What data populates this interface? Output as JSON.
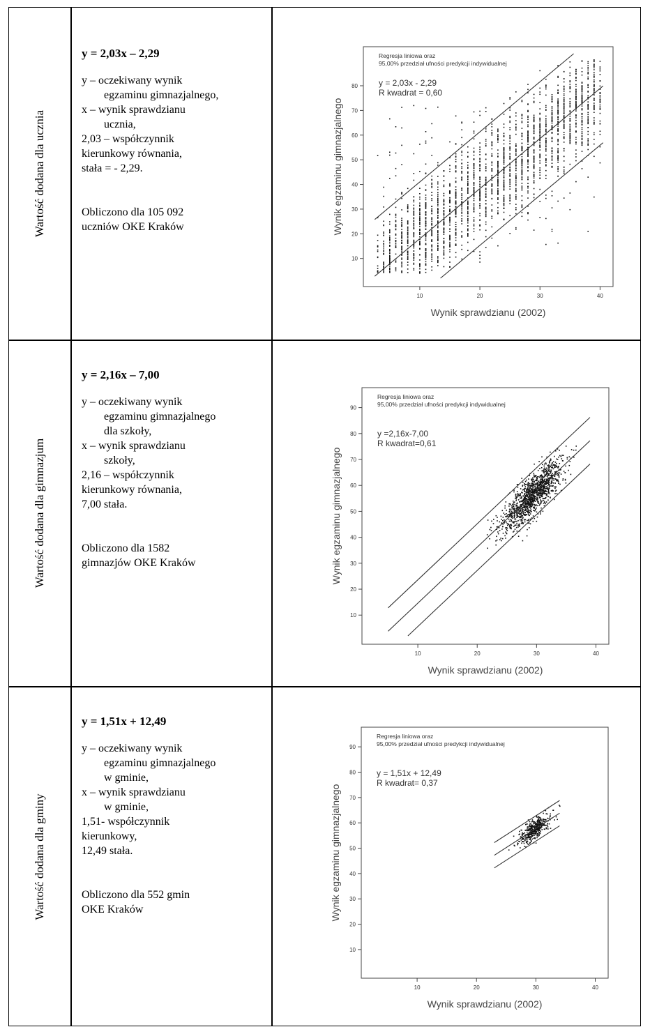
{
  "rows": [
    {
      "label": "Wartość dodana dla ucznia",
      "equation": "y = 2,03x – 2,29",
      "lines": [
        "y – oczekiwany wynik",
        "egzaminu gimnazjalnego,",
        "x – wynik sprawdzianu",
        "ucznia,",
        "2,03 – współczynnik",
        "kierunkowy równania,",
        "stała = - 2,29."
      ],
      "note": [
        "Obliczono dla 105 092",
        "uczniów OKE Kraków"
      ]
    },
    {
      "label": "Wartość dodana dla gimnazjum",
      "equation": "y = 2,16x – 7,00",
      "lines": [
        "y – oczekiwany wynik",
        "egzaminu gimnazjalnego",
        "dla szkoły,",
        "x – wynik sprawdzianu",
        "szkoły,",
        "2,16 – współczynnik",
        "kierunkowy równania,",
        "7,00 stała."
      ],
      "note": [
        "Obliczono dla 1582",
        "gimnazjów OKE Kraków"
      ]
    },
    {
      "label": "Wartość dodana dla gminy",
      "equation": "y = 1,51x + 12,49",
      "lines": [
        "y – oczekiwany wynik",
        "egzaminu gimnazjalnego",
        "w gminie,",
        "x – wynik sprawdzianu",
        "w gminie,",
        "1,51- współczynnik",
        "kierunkowy,",
        "12,49 stała."
      ],
      "note": [
        "Obliczono dla 552 gmin",
        "OKE Kraków"
      ]
    }
  ],
  "chart_data": [
    {
      "type": "scatter",
      "title": "Regresja liniowa oraz",
      "subtitle": "95,00% przedział ufności predykcji indywidualnej",
      "equation_label": "y = 2,03x - 2,29",
      "r2_label": "R kwadrat = 0,60",
      "xlabel": "Wynik sprawdzianu (2002)",
      "ylabel": "Wynik egzaminu gimnazjalnego",
      "xticks": [
        "10",
        "20",
        "30",
        "40"
      ],
      "yticks": [
        "10",
        "20",
        "30",
        "40",
        "50",
        "60",
        "70",
        "80"
      ],
      "xlim": [
        2,
        41
      ],
      "ylim": [
        2,
        93
      ],
      "slope": 2.03,
      "intercept": -2.29,
      "interval_halfwidth": 23,
      "point_count_label": "105 092"
    },
    {
      "type": "scatter",
      "title": "Regresja liniowa oraz",
      "subtitle": "95,00% przedział ufności predykcji indywidualnej",
      "equation_label": "y =2,16x-7,00",
      "r2_label": "R kwadrat=0,61",
      "xlabel": "Wynik sprawdzianu (2002)",
      "ylabel": "Wynik egzaminu gimnazjalnego",
      "xticks": [
        "10",
        "20",
        "30",
        "40"
      ],
      "yticks": [
        "10",
        "20",
        "30",
        "40",
        "50",
        "60",
        "70",
        "80",
        "90"
      ],
      "xlim": [
        2,
        41
      ],
      "ylim": [
        2,
        95
      ],
      "slope": 2.16,
      "intercept": -7.0,
      "interval_halfwidth": 9,
      "point_count_label": "1582"
    },
    {
      "type": "scatter",
      "title": "Regresja liniowa oraz",
      "subtitle": "95,00% przedział ufności predykcji indywidualnej",
      "equation_label": "y = 1,51x + 12,49",
      "r2_label": "R kwadrat= 0,37",
      "xlabel": "Wynik sprawdzianu (2002)",
      "ylabel": "Wynik egzaminu gimnazjalnego",
      "xticks": [
        "10",
        "20",
        "30",
        "40"
      ],
      "yticks": [
        "10",
        "20",
        "30",
        "40",
        "50",
        "60",
        "70",
        "80",
        "90"
      ],
      "xlim": [
        2,
        41
      ],
      "ylim": [
        2,
        95
      ],
      "slope": 1.51,
      "intercept": 12.49,
      "interval_halfwidth": 5,
      "point_count_label": "552"
    }
  ]
}
